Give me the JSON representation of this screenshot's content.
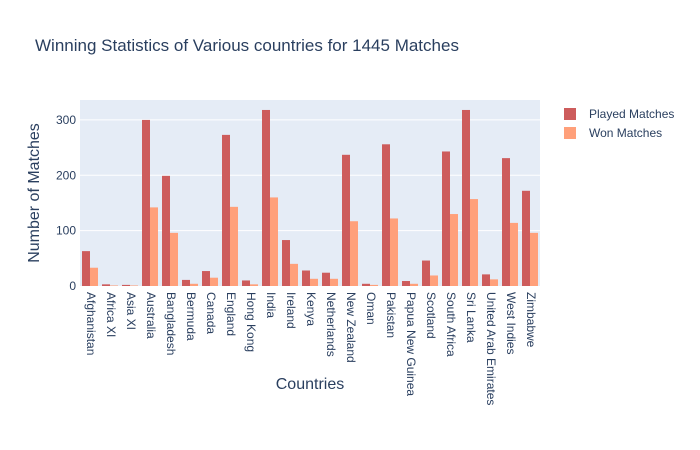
{
  "chart_data": {
    "type": "bar",
    "title": "Winning Statistics of Various countries for 1445 Matches",
    "xlabel": "Countries",
    "ylabel": "Number of Matches",
    "ylim": [
      0,
      336
    ],
    "yticks": [
      0,
      100,
      200,
      300
    ],
    "grid": true,
    "legend_position": "top-right",
    "categories": [
      "Afghanistan",
      "Africa XI",
      "Asia XI",
      "Australia",
      "Bangladesh",
      "Bermuda",
      "Canada",
      "England",
      "Hong Kong",
      "India",
      "Ireland",
      "Kenya",
      "Netherlands",
      "New Zealand",
      "Oman",
      "Pakistan",
      "Papua New Guinea",
      "Scotland",
      "South Africa",
      "Sri Lanka",
      "United Arab Emirates",
      "West Indies",
      "Zimbabwe"
    ],
    "series": [
      {
        "name": "Played Matches",
        "color": "#cd5c5c",
        "values": [
          63,
          3,
          2,
          300,
          199,
          11,
          27,
          273,
          10,
          318,
          83,
          28,
          24,
          237,
          4,
          256,
          9,
          46,
          243,
          318,
          21,
          231,
          172
        ]
      },
      {
        "name": "Won Matches",
        "color": "#ffa07a",
        "values": [
          33,
          1,
          1,
          142,
          96,
          4,
          15,
          143,
          3,
          160,
          40,
          13,
          13,
          117,
          2,
          122,
          4,
          19,
          130,
          157,
          12,
          114,
          96
        ]
      }
    ]
  }
}
